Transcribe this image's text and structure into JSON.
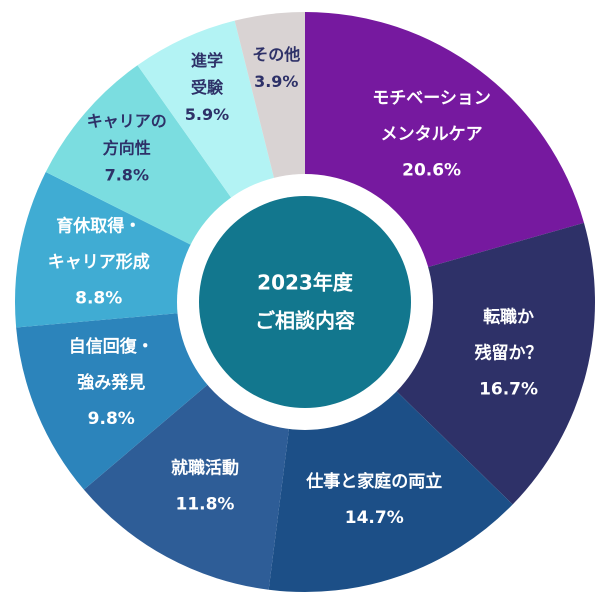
{
  "chart_data": {
    "type": "donut",
    "title": [
      "2023年度",
      "ご相談内容"
    ],
    "categories": [
      [
        "モチベーション",
        "メンタルケア"
      ],
      [
        "転職か",
        "残留か？"
      ],
      [
        "仕事と家庭の両立"
      ],
      [
        "就職活動"
      ],
      [
        "自信回復・",
        "強み発見"
      ],
      [
        "育休取得・",
        "キャリア形成"
      ],
      [
        "キャリアの",
        "方向性"
      ],
      [
        "進学",
        "受験"
      ],
      [
        "その他"
      ]
    ],
    "values": [
      20.6,
      16.7,
      14.7,
      11.8,
      9.8,
      8.8,
      7.8,
      5.9,
      3.9
    ],
    "value_labels": [
      "20.6%",
      "16.7%",
      "14.7%",
      "11.8%",
      "9.8%",
      "8.8%",
      "7.8%",
      "5.9%",
      "3.9%"
    ],
    "colors": [
      "#76199f",
      "#2e3168",
      "#1c4f87",
      "#2e5d97",
      "#2c84bb",
      "#40acd3",
      "#7bdde0",
      "#b3f3f4",
      "#d9d3d3"
    ],
    "label_colors": [
      "#ffffff",
      "#ffffff",
      "#ffffff",
      "#ffffff",
      "#ffffff",
      "#ffffff",
      "#2e3168",
      "#2e3168",
      "#2e3168"
    ],
    "center_color": "#12778e"
  }
}
